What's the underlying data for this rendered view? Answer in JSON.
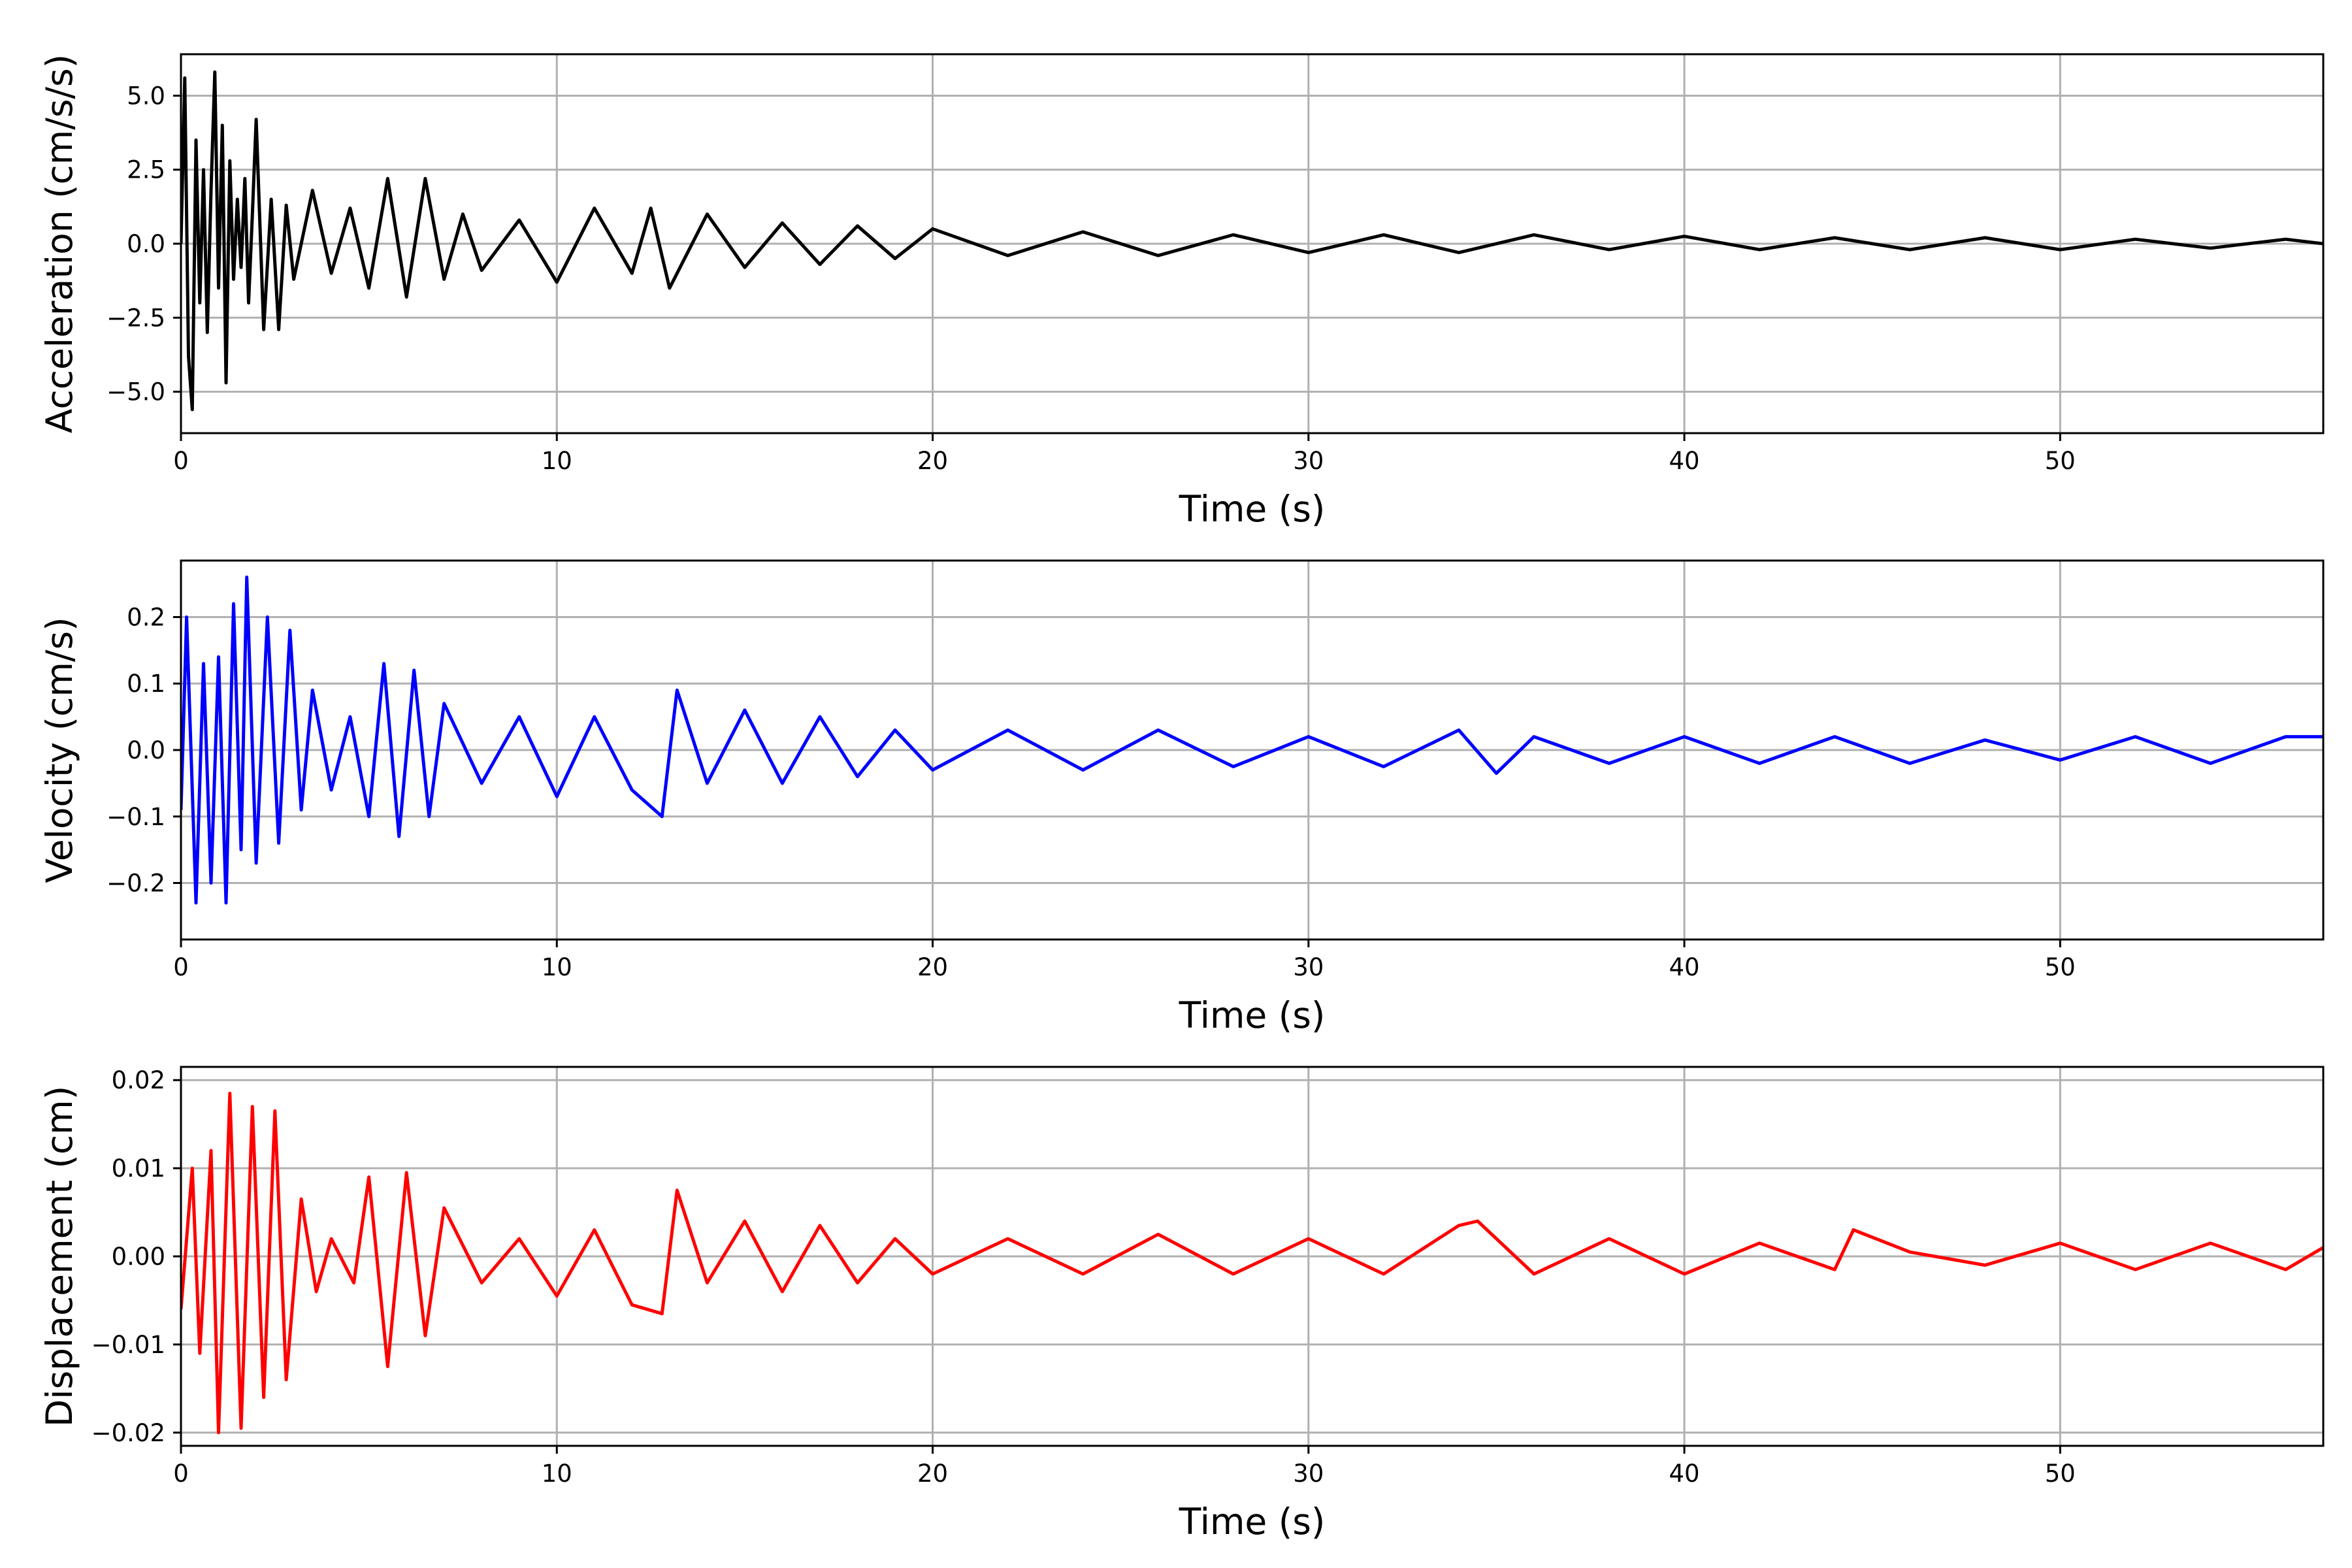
{
  "chart_data": [
    {
      "type": "line",
      "xlabel": "Time (s)",
      "ylabel": "Acceleration (cm/s/s)",
      "xlim": [
        0,
        57
      ],
      "ylim": [
        -6.4,
        6.4
      ],
      "xticks": [
        0,
        10,
        20,
        30,
        40,
        50
      ],
      "xtick_labels": [
        "0",
        "10",
        "20",
        "30",
        "40",
        "50"
      ],
      "yticks": [
        -5.0,
        -2.5,
        0.0,
        2.5,
        5.0
      ],
      "ytick_labels": [
        "−5.0",
        "−2.5",
        "0.0",
        "2.5",
        "5.0"
      ],
      "grid": true,
      "color": "#000000",
      "series": [
        {
          "x": [
            0,
            0.1,
            0.2,
            0.3,
            0.4,
            0.5,
            0.6,
            0.7,
            0.8,
            0.9,
            1.0,
            1.1,
            1.2,
            1.3,
            1.4,
            1.5,
            1.6,
            1.7,
            1.8,
            1.9,
            2.0,
            2.2,
            2.4,
            2.6,
            2.8,
            3.0,
            3.5,
            4.0,
            4.5,
            5.0,
            5.5,
            6.0,
            6.5,
            7.0,
            7.5,
            8.0,
            9.0,
            10.0,
            11.0,
            12.0,
            12.5,
            13.0,
            14.0,
            15.0,
            16.0,
            17.0,
            18.0,
            19.0,
            20.0,
            22.0,
            24.0,
            26.0,
            28.0,
            30.0,
            32.0,
            34.0,
            36.0,
            38.0,
            40.0,
            42.0,
            44.0,
            46.0,
            48.0,
            50.0,
            52.0,
            54.0,
            56.0,
            57.0
          ],
          "y": [
            0.0,
            5.6,
            -3.8,
            -5.6,
            3.5,
            -2.0,
            2.5,
            -3.0,
            1.8,
            5.8,
            -1.5,
            4.0,
            -4.7,
            2.8,
            -1.2,
            1.5,
            -0.8,
            2.2,
            -2.0,
            1.0,
            4.2,
            -2.9,
            1.5,
            -2.9,
            1.3,
            -1.2,
            1.8,
            -1.0,
            1.2,
            -1.5,
            2.2,
            -1.8,
            2.2,
            -1.2,
            1.0,
            -0.9,
            0.8,
            -1.3,
            1.2,
            -1.0,
            1.2,
            -1.5,
            1.0,
            -0.8,
            0.7,
            -0.7,
            0.6,
            -0.5,
            0.5,
            -0.4,
            0.4,
            -0.4,
            0.3,
            -0.3,
            0.3,
            -0.3,
            0.3,
            -0.2,
            0.25,
            -0.2,
            0.2,
            -0.2,
            0.2,
            -0.2,
            0.15,
            -0.15,
            0.15,
            0.0
          ]
        }
      ]
    },
    {
      "type": "line",
      "xlabel": "Time (s)",
      "ylabel": "Velocity (cm/s)",
      "xlim": [
        0,
        57
      ],
      "ylim": [
        -0.285,
        0.285
      ],
      "xticks": [
        0,
        10,
        20,
        30,
        40,
        50
      ],
      "xtick_labels": [
        "0",
        "10",
        "20",
        "30",
        "40",
        "50"
      ],
      "yticks": [
        -0.2,
        -0.1,
        0.0,
        0.1,
        0.2
      ],
      "ytick_labels": [
        "−0.2",
        "−0.1",
        "0.0",
        "0.1",
        "0.2"
      ],
      "grid": true,
      "color": "#0000ff",
      "series": [
        {
          "x": [
            0,
            0.15,
            0.4,
            0.6,
            0.8,
            1.0,
            1.2,
            1.4,
            1.6,
            1.75,
            2.0,
            2.3,
            2.6,
            2.9,
            3.2,
            3.5,
            4.0,
            4.5,
            5.0,
            5.4,
            5.8,
            6.2,
            6.6,
            7.0,
            8.0,
            9.0,
            10.0,
            11.0,
            12.0,
            12.8,
            13.2,
            14.0,
            15.0,
            16.0,
            17.0,
            18.0,
            19.0,
            20.0,
            22.0,
            24.0,
            26.0,
            28.0,
            30.0,
            32.0,
            34.0,
            35.0,
            36.0,
            38.0,
            40.0,
            42.0,
            44.0,
            46.0,
            48.0,
            50.0,
            52.0,
            54.0,
            56.0,
            57.0
          ],
          "y": [
            -0.09,
            0.2,
            -0.23,
            0.13,
            -0.2,
            0.14,
            -0.23,
            0.22,
            -0.15,
            0.26,
            -0.17,
            0.2,
            -0.14,
            0.18,
            -0.09,
            0.09,
            -0.06,
            0.05,
            -0.1,
            0.13,
            -0.13,
            0.12,
            -0.1,
            0.07,
            -0.05,
            0.05,
            -0.07,
            0.05,
            -0.06,
            -0.1,
            0.09,
            -0.05,
            0.06,
            -0.05,
            0.05,
            -0.04,
            0.03,
            -0.03,
            0.03,
            -0.03,
            0.03,
            -0.025,
            0.02,
            -0.025,
            0.03,
            -0.035,
            0.02,
            -0.02,
            0.02,
            -0.02,
            0.02,
            -0.02,
            0.015,
            -0.015,
            0.02,
            -0.02,
            0.02,
            0.02
          ]
        }
      ]
    },
    {
      "type": "line",
      "xlabel": "Time (s)",
      "ylabel": "Displacement (cm)",
      "xlim": [
        0,
        57
      ],
      "ylim": [
        -0.0215,
        0.0215
      ],
      "xticks": [
        0,
        10,
        20,
        30,
        40,
        50
      ],
      "xtick_labels": [
        "0",
        "10",
        "20",
        "30",
        "40",
        "50"
      ],
      "yticks": [
        -0.02,
        -0.01,
        0.0,
        0.01,
        0.02
      ],
      "ytick_labels": [
        "−0.02",
        "−0.01",
        "0.00",
        "0.01",
        "0.02"
      ],
      "grid": true,
      "color": "#ff0000",
      "series": [
        {
          "x": [
            0,
            0.3,
            0.5,
            0.8,
            1.0,
            1.3,
            1.6,
            1.9,
            2.2,
            2.5,
            2.8,
            3.2,
            3.6,
            4.0,
            4.6,
            5.0,
            5.5,
            6.0,
            6.5,
            7.0,
            8.0,
            9.0,
            10.0,
            11.0,
            12.0,
            12.8,
            13.2,
            14.0,
            15.0,
            16.0,
            17.0,
            18.0,
            19.0,
            20.0,
            22.0,
            24.0,
            26.0,
            28.0,
            30.0,
            32.0,
            34.0,
            34.5,
            36.0,
            38.0,
            40.0,
            42.0,
            44.0,
            44.5,
            46.0,
            48.0,
            50.0,
            52.0,
            54.0,
            56.0,
            57.0
          ],
          "y": [
            -0.006,
            0.01,
            -0.011,
            0.012,
            -0.02,
            0.0185,
            -0.0195,
            0.017,
            -0.016,
            0.0165,
            -0.014,
            0.0065,
            -0.004,
            0.002,
            -0.003,
            0.009,
            -0.0125,
            0.0095,
            -0.009,
            0.0055,
            -0.003,
            0.002,
            -0.0045,
            0.003,
            -0.0055,
            -0.0065,
            0.0075,
            -0.003,
            0.004,
            -0.004,
            0.0035,
            -0.003,
            0.002,
            -0.002,
            0.002,
            -0.002,
            0.0025,
            -0.002,
            0.002,
            -0.002,
            0.0035,
            0.004,
            -0.002,
            0.002,
            -0.002,
            0.0015,
            -0.0015,
            0.003,
            0.0005,
            -0.001,
            0.0015,
            -0.0015,
            0.0015,
            -0.0015,
            0.001
          ]
        }
      ]
    }
  ]
}
